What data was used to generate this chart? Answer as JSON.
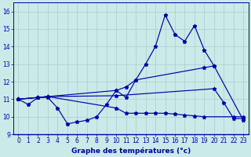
{
  "bg_color": "#caeaea",
  "line_color": "#0000aa",
  "grid_color": "#aacccc",
  "xlabel": "Graphe des températures (°c)",
  "yticks": [
    9,
    10,
    11,
    12,
    13,
    14,
    15,
    16
  ],
  "xticks": [
    0,
    1,
    2,
    3,
    4,
    5,
    6,
    7,
    8,
    9,
    10,
    11,
    12,
    13,
    14,
    15,
    16,
    17,
    18,
    19,
    20,
    21,
    22,
    23
  ],
  "xlim": [
    -0.5,
    23.5
  ],
  "ylim": [
    9.0,
    16.5
  ],
  "series": [
    {
      "x": [
        0,
        1,
        2,
        3,
        4,
        5,
        6,
        7,
        8,
        9,
        10,
        11,
        12,
        13,
        14,
        15,
        16,
        17,
        18,
        19,
        20,
        23
      ],
      "y": [
        11.0,
        10.7,
        11.1,
        11.1,
        10.5,
        9.6,
        9.7,
        9.8,
        10.0,
        10.7,
        11.5,
        11.1,
        12.1,
        13.0,
        14.0,
        15.8,
        14.7,
        14.3,
        15.2,
        13.8,
        12.9,
        9.8
      ]
    },
    {
      "x": [
        0,
        2,
        3,
        10,
        11,
        12,
        19,
        20
      ],
      "y": [
        11.0,
        11.1,
        11.15,
        11.5,
        11.7,
        12.1,
        12.8,
        12.9
      ]
    },
    {
      "x": [
        0,
        2,
        3,
        10,
        20,
        21,
        22,
        23
      ],
      "y": [
        11.0,
        11.1,
        11.15,
        11.2,
        11.6,
        10.8,
        9.9,
        9.9
      ]
    },
    {
      "x": [
        0,
        2,
        3,
        10,
        11,
        12,
        13,
        14,
        15,
        16,
        17,
        18,
        19,
        22,
        23
      ],
      "y": [
        11.0,
        11.1,
        11.15,
        10.5,
        10.2,
        10.2,
        10.2,
        10.2,
        10.2,
        10.15,
        10.1,
        10.05,
        10.0,
        10.0,
        10.0
      ]
    }
  ],
  "tick_labelsize": 5.5,
  "xlabel_fontsize": 6.5,
  "linewidth": 0.85,
  "markersize": 3.5
}
